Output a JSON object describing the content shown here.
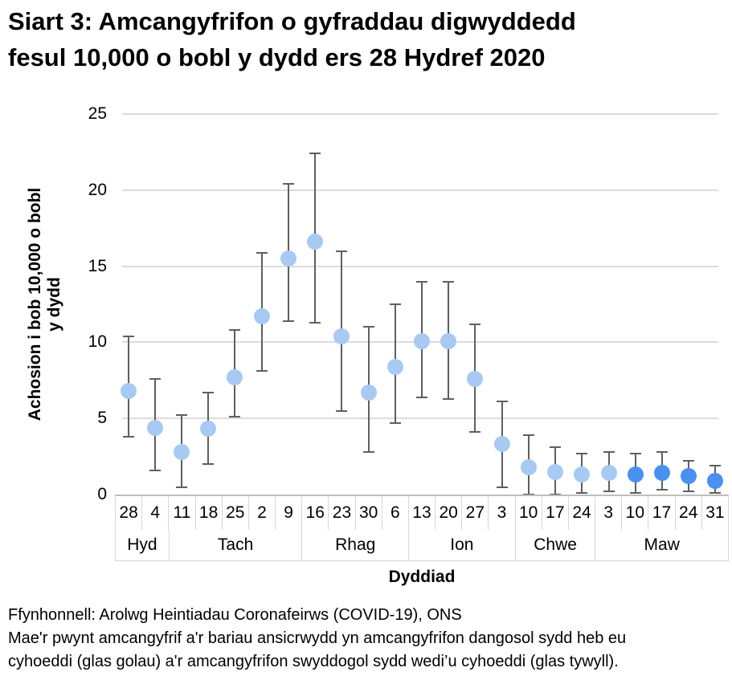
{
  "page": {
    "title_lines": [
      "Siart 3: Amcangyfrifon o gyfraddau digwyddedd",
      "fesul 10,000 o bobl y dydd ers 28 Hydref 2020"
    ]
  },
  "footer": {
    "source": "Ffynhonnell: Arolwg Heintiadau Coronafeirws (COVID-19), ONS",
    "note_lines": [
      "Mae'r pwynt amcangyfrif a'r bariau ansicrwydd yn amcangyfrifon dangosol sydd heb eu",
      "cyhoeddi (glas golau) a'r amcangyfrifon swyddogol sydd wedi’u cyhoeddi (glas tywyll)."
    ]
  },
  "chart_data": {
    "type": "scatter",
    "title": "Siart 3: Amcangyfrifon o gyfraddau digwyddedd fesul 10,000 o bobl y dydd ers 28 Hydref 2020",
    "xlabel": "Dyddiad",
    "ylabel_lines": [
      "Achosion i bob 10,000 o bobl",
      "y dydd"
    ],
    "ylim": [
      0,
      25
    ],
    "yticks": [
      0,
      5,
      10,
      15,
      20,
      25
    ],
    "grid": "horizontal",
    "marker_colors": {
      "unpublished_light_blue": "#a8caf2",
      "published_dark_blue": "#4a90ee"
    },
    "error_bar_color": "#5f5f5f",
    "categories": [
      "28",
      "4",
      "11",
      "18",
      "25",
      "2",
      "9",
      "16",
      "23",
      "30",
      "6",
      "13",
      "20",
      "27",
      "3",
      "10",
      "17",
      "24",
      "3",
      "10",
      "17",
      "24",
      "31"
    ],
    "month_groups": [
      {
        "label": "Hyd",
        "span": 2
      },
      {
        "label": "Tach",
        "span": 5
      },
      {
        "label": "Rhag",
        "span": 4
      },
      {
        "label": "Ion",
        "span": 4
      },
      {
        "label": "Chwe",
        "span": 3
      },
      {
        "label": "Maw",
        "span": 5
      }
    ],
    "points": [
      {
        "date": "28",
        "est": 6.8,
        "lo": 3.8,
        "hi": 10.4,
        "published": false
      },
      {
        "date": "4",
        "est": 4.4,
        "lo": 1.6,
        "hi": 7.6,
        "published": false
      },
      {
        "date": "11",
        "est": 2.8,
        "lo": 0.5,
        "hi": 5.2,
        "published": false
      },
      {
        "date": "18",
        "est": 4.3,
        "lo": 2.0,
        "hi": 6.7,
        "published": false
      },
      {
        "date": "25",
        "est": 7.7,
        "lo": 5.1,
        "hi": 10.8,
        "published": false
      },
      {
        "date": "2",
        "est": 11.7,
        "lo": 8.1,
        "hi": 15.9,
        "published": false
      },
      {
        "date": "9",
        "est": 15.5,
        "lo": 11.4,
        "hi": 20.4,
        "published": false
      },
      {
        "date": "16",
        "est": 16.6,
        "lo": 11.3,
        "hi": 22.4,
        "published": false
      },
      {
        "date": "23",
        "est": 10.4,
        "lo": 5.5,
        "hi": 16.0,
        "published": false
      },
      {
        "date": "30",
        "est": 6.7,
        "lo": 2.8,
        "hi": 11.0,
        "published": false
      },
      {
        "date": "6",
        "est": 8.4,
        "lo": 4.7,
        "hi": 12.5,
        "published": false
      },
      {
        "date": "13",
        "est": 10.1,
        "lo": 6.4,
        "hi": 14.0,
        "published": false
      },
      {
        "date": "20",
        "est": 10.1,
        "lo": 6.3,
        "hi": 14.0,
        "published": false
      },
      {
        "date": "27",
        "est": 7.6,
        "lo": 4.1,
        "hi": 11.2,
        "published": false
      },
      {
        "date": "3",
        "est": 3.3,
        "lo": 0.5,
        "hi": 6.1,
        "published": false
      },
      {
        "date": "10",
        "est": 1.8,
        "lo": 0.0,
        "hi": 3.9,
        "published": false
      },
      {
        "date": "17",
        "est": 1.5,
        "lo": 0.0,
        "hi": 3.1,
        "published": false
      },
      {
        "date": "24",
        "est": 1.3,
        "lo": 0.1,
        "hi": 2.7,
        "published": false
      },
      {
        "date": "3",
        "est": 1.4,
        "lo": 0.2,
        "hi": 2.8,
        "published": false
      },
      {
        "date": "10",
        "est": 1.3,
        "lo": 0.1,
        "hi": 2.7,
        "published": true
      },
      {
        "date": "17",
        "est": 1.4,
        "lo": 0.3,
        "hi": 2.8,
        "published": true
      },
      {
        "date": "24",
        "est": 1.2,
        "lo": 0.2,
        "hi": 2.2,
        "published": true
      },
      {
        "date": "31",
        "est": 0.9,
        "lo": 0.1,
        "hi": 1.9,
        "published": true
      }
    ]
  }
}
